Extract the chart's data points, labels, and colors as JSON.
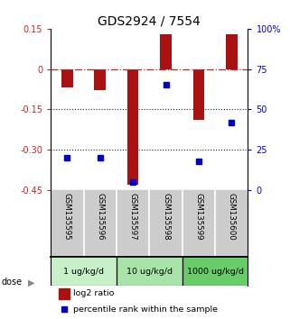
{
  "title": "GDS2924 / 7554",
  "samples": [
    "GSM135595",
    "GSM135596",
    "GSM135597",
    "GSM135598",
    "GSM135599",
    "GSM135600"
  ],
  "log2_ratio": [
    -0.07,
    -0.08,
    -0.43,
    0.13,
    -0.19,
    0.13
  ],
  "percentile_rank_pct": [
    20,
    20,
    5,
    65,
    18,
    42
  ],
  "doses": [
    {
      "label": "1 ug/kg/d",
      "samples": [
        0,
        1
      ],
      "color": "#c8f0c8"
    },
    {
      "label": "10 ug/kg/d",
      "samples": [
        2,
        3
      ],
      "color": "#a8e4a8"
    },
    {
      "label": "1000 ug/kg/d",
      "samples": [
        4,
        5
      ],
      "color": "#68cc68"
    }
  ],
  "ylim_left": [
    -0.45,
    0.15
  ],
  "ylim_right": [
    0,
    100
  ],
  "yticks_left": [
    0.15,
    0.0,
    -0.15,
    -0.3,
    -0.45
  ],
  "yticks_left_labels": [
    "0.15",
    "0",
    "-0.15",
    "-0.30",
    "-0.45"
  ],
  "yticks_right": [
    100,
    75,
    50,
    25,
    0
  ],
  "yticks_right_labels": [
    "100%",
    "75",
    "50",
    "25",
    "0"
  ],
  "bar_color": "#aa1111",
  "dot_color": "#0000cc",
  "hline_color": "#cc2222",
  "dotted_line_color": "#222222",
  "legend_bar_label": "log2 ratio",
  "legend_dot_label": "percentile rank within the sample",
  "dose_label": "dose",
  "background_color": "#ffffff",
  "plot_bg_color": "#ffffff",
  "sample_bg_color": "#cccccc",
  "title_fontsize": 10,
  "tick_fontsize": 7,
  "bar_width": 0.35
}
